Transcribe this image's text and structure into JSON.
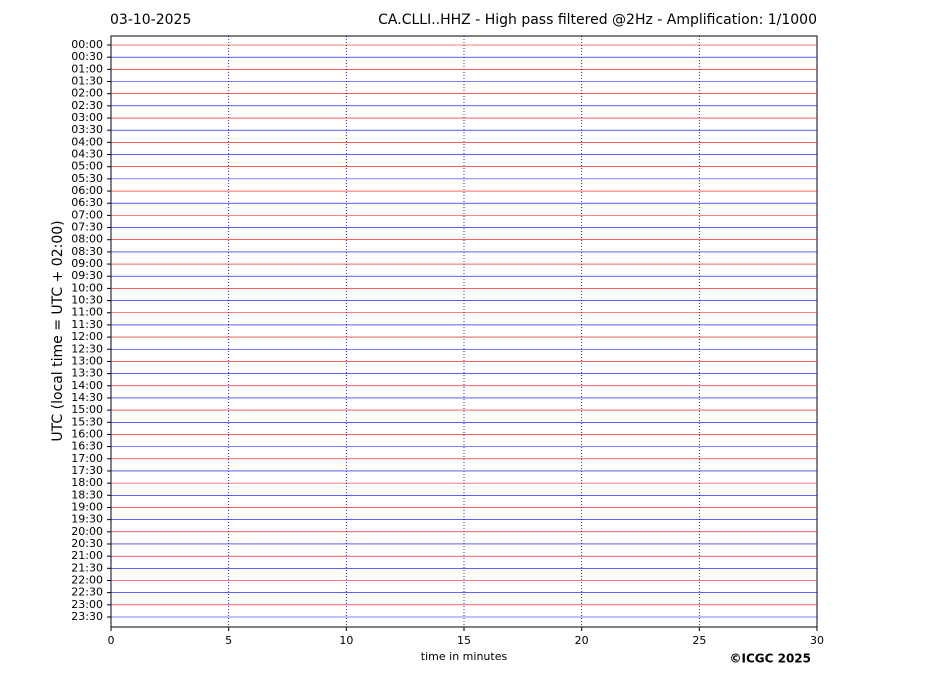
{
  "chart_data": {
    "type": "helicorder",
    "date": "03-10-2025",
    "title": "CA.CLLI..HHZ - High pass filtered @2Hz - Amplification: 1/1000",
    "x_label": "time in minutes",
    "y_label": "UTC (local time = UTC + 02:00)",
    "credit": "©ICGC 2025",
    "categories": [
      "00:00",
      "00:30",
      "01:00",
      "01:30",
      "02:00",
      "02:30",
      "03:00",
      "03:30",
      "04:00",
      "04:30",
      "05:00",
      "05:30",
      "06:00",
      "06:30",
      "07:00",
      "07:30",
      "08:00",
      "08:30",
      "09:00",
      "09:30",
      "10:00",
      "10:30",
      "11:00",
      "11:30",
      "12:00",
      "12:30",
      "13:00",
      "13:30",
      "14:00",
      "14:30",
      "15:00",
      "15:30",
      "16:00",
      "16:30",
      "17:00",
      "17:30",
      "18:00",
      "18:30",
      "19:00",
      "19:30",
      "20:00",
      "20:30",
      "21:00",
      "21:30",
      "22:00",
      "22:30",
      "23:00",
      "23:30"
    ],
    "colors": [
      "#ff0000",
      "#0000ff"
    ],
    "xlim": [
      0,
      30
    ],
    "xticks": [
      0,
      5,
      10,
      15,
      20,
      25,
      30
    ],
    "grid": true
  }
}
